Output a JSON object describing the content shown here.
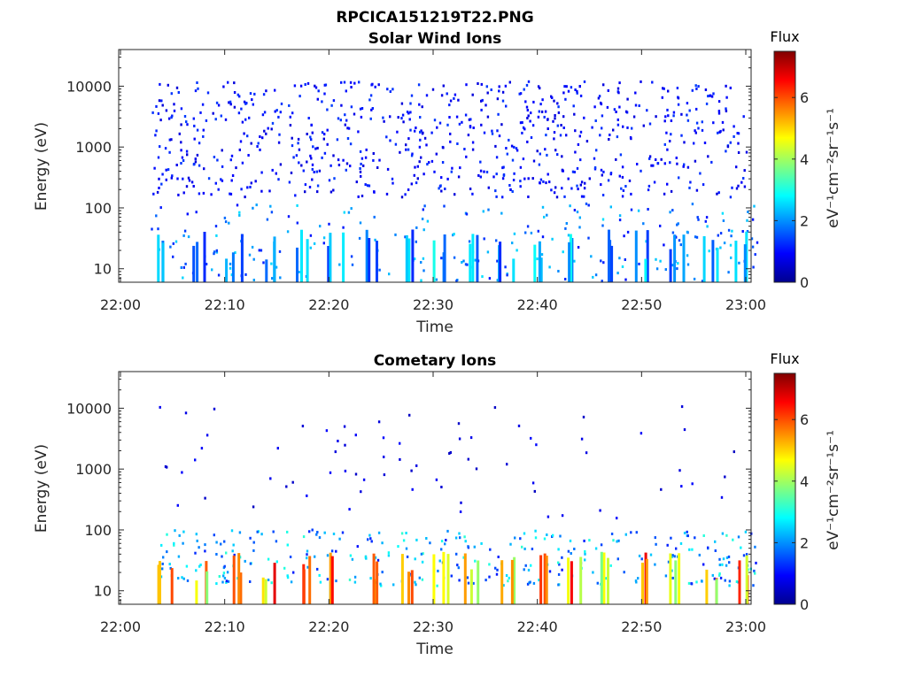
{
  "figure": {
    "file_title": "RPCICA151219T22.PNG"
  },
  "colormap": {
    "stops": [
      "#00008f",
      "#0000ff",
      "#0080ff",
      "#00ffff",
      "#80ff80",
      "#ffff00",
      "#ff8000",
      "#ff0000",
      "#800000"
    ]
  },
  "chart_data": [
    {
      "type": "heatmap",
      "title": "Solar Wind Ions",
      "xlabel": "Time",
      "ylabel": "Energy (eV)",
      "x_ticks": [
        "22:00",
        "22:10",
        "22:20",
        "22:30",
        "22:40",
        "22:50",
        "23:00"
      ],
      "x_range_minutes": [
        0,
        60
      ],
      "y_scale": "log",
      "y_ticks": [
        "10",
        "100",
        "1000",
        "10000"
      ],
      "y_range": [
        6,
        40000
      ],
      "colorbar": {
        "title": "Flux",
        "label": "eV⁻¹cm⁻²sr⁻¹s⁻¹",
        "ticks": [
          "0",
          "2",
          "4",
          "6"
        ],
        "range": [
          0,
          7.5
        ]
      },
      "pattern": {
        "sparse": {
          "count": 780,
          "emin": 150,
          "emax": 12000,
          "xmin": 3.0,
          "xmax": 60.0,
          "flux_lo": 0.6,
          "flux_hi": 1.4
        },
        "low": {
          "count": 260,
          "emin": 6,
          "emax": 120,
          "flux_lo": 1.0,
          "flux_hi": 2.6
        },
        "bursts_min": [
          4.3,
          7.5,
          10.8,
          14.0,
          17.3,
          20.6,
          24.0,
          27.3,
          30.6,
          33.7,
          37.0,
          40.3,
          43.6,
          46.8,
          50.0,
          53.4,
          56.6,
          59.5
        ],
        "burst_flux": [
          1.2,
          3.0
        ]
      }
    },
    {
      "type": "heatmap",
      "title": "Cometary Ions",
      "xlabel": "Time",
      "ylabel": "Energy (eV)",
      "x_ticks": [
        "22:00",
        "22:10",
        "22:20",
        "22:30",
        "22:40",
        "22:50",
        "23:00"
      ],
      "x_range_minutes": [
        0,
        60
      ],
      "y_scale": "log",
      "y_ticks": [
        "10",
        "100",
        "1000",
        "10000"
      ],
      "y_range": [
        6,
        40000
      ],
      "colorbar": {
        "title": "Flux",
        "label": "eV⁻¹cm⁻²sr⁻¹s⁻¹",
        "ticks": [
          "0",
          "2",
          "4",
          "6"
        ],
        "range": [
          0,
          7.5
        ]
      },
      "pattern": {
        "sparse": {
          "count": 75,
          "emin": 150,
          "emax": 11000,
          "xmin": 3.0,
          "xmax": 60.0,
          "flux_lo": 0.4,
          "flux_hi": 1.0
        },
        "low": {
          "count": 340,
          "emin": 12,
          "emax": 100,
          "flux_lo": 1.0,
          "flux_hi": 3.2
        },
        "bursts_min": [
          4.3,
          7.5,
          10.8,
          14.0,
          17.3,
          20.6,
          24.0,
          27.3,
          30.6,
          33.7,
          37.0,
          40.3,
          43.6,
          46.8,
          50.0,
          53.4,
          56.6,
          59.5
        ],
        "burst_flux": [
          3.5,
          6.8
        ]
      }
    }
  ]
}
